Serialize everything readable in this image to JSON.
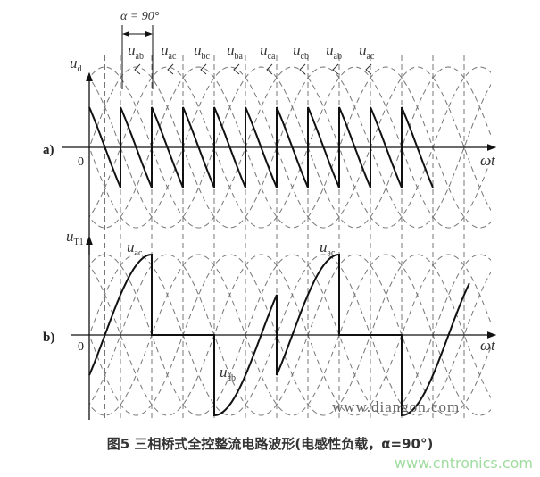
{
  "figure": {
    "alpha_label": "α = 90°",
    "panel_a": {
      "tag": "a)",
      "y_label": {
        "main": "u",
        "sub": "d"
      },
      "origin": "0",
      "x_label": "ωt",
      "segment_labels": [
        {
          "main": "u",
          "sub": "ab"
        },
        {
          "main": "u",
          "sub": "ac"
        },
        {
          "main": "u",
          "sub": "bc"
        },
        {
          "main": "u",
          "sub": "ba"
        },
        {
          "main": "u",
          "sub": "ca"
        },
        {
          "main": "u",
          "sub": "cb"
        },
        {
          "main": "u",
          "sub": "ab"
        },
        {
          "main": "u",
          "sub": "ac"
        }
      ]
    },
    "panel_b": {
      "tag": "b)",
      "y_label": {
        "main": "u",
        "sub": "T1"
      },
      "origin": "0",
      "x_label": "ωt",
      "curve_labels": [
        {
          "main": "u",
          "sub": "ac"
        },
        {
          "main": "u",
          "sub": "ac"
        },
        {
          "main": "u",
          "sub": "ab"
        }
      ]
    },
    "watermark": "www.diangon.com",
    "colors": {
      "line": "#111111",
      "dashed": "#777777",
      "site_watermark": "#9fdc9f"
    }
  },
  "caption": "图5 三相桥式全控整流电路波形(电感性负载，α=90°)",
  "site_watermark": "www.cntronics.com"
}
